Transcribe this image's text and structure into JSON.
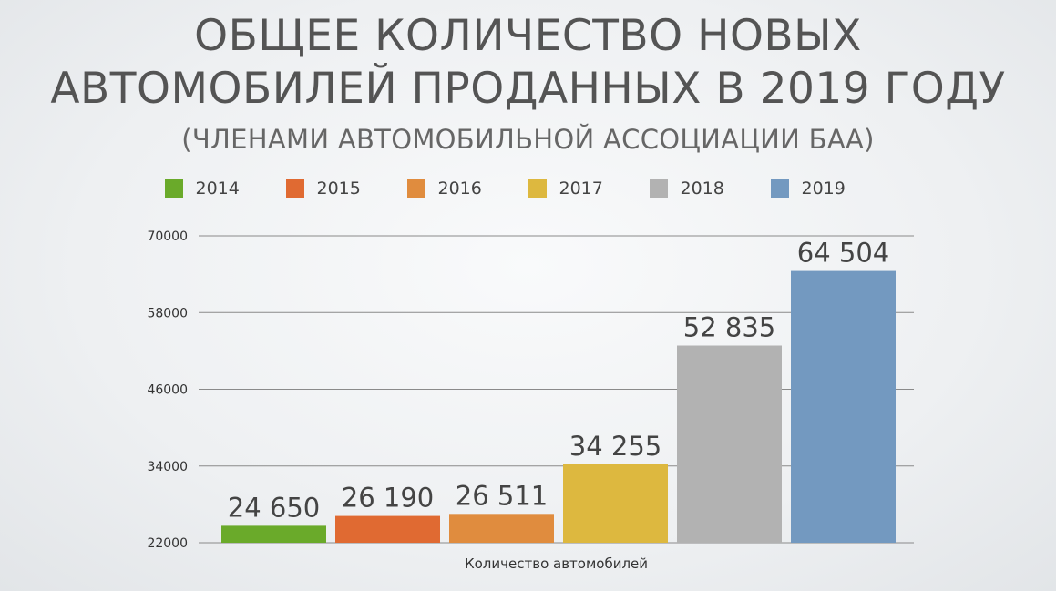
{
  "title_line1": "ОБЩЕЕ КОЛИЧЕСТВО НОВЫХ",
  "title_line2": "АВТОМОБИЛЕЙ ПРОДАННЫХ В 2019 ГОДУ",
  "subtitle": "(ЧЛЕНАМИ АВТОМОБИЛЬНОЙ АССОЦИАЦИИ БАА)",
  "chart_data": {
    "type": "bar",
    "title": "ОБЩЕЕ КОЛИЧЕСТВО НОВЫХ АВТОМОБИЛЕЙ ПРОДАННЫХ В 2019 ГОДУ",
    "subtitle": "(ЧЛЕНАМИ АВТОМОБИЛЬНОЙ АССОЦИАЦИИ БАА)",
    "xlabel": "Количество автомобилей",
    "ylabel": "",
    "ylim": [
      22000,
      70000
    ],
    "yticks": [
      22000,
      34000,
      46000,
      58000,
      70000
    ],
    "ytick_labels": [
      "22000",
      "34000",
      "46000",
      "58000",
      "70000"
    ],
    "grid": true,
    "legend_position": "top",
    "series": [
      {
        "name": "2014",
        "value": 24650,
        "label": "24 650",
        "color": "#6aaa2a"
      },
      {
        "name": "2015",
        "value": 26190,
        "label": "26 190",
        "color": "#e06a32"
      },
      {
        "name": "2016",
        "value": 26511,
        "label": "26 511",
        "color": "#e08c3e"
      },
      {
        "name": "2017",
        "value": 34255,
        "label": "34 255",
        "color": "#ddb83f"
      },
      {
        "name": "2018",
        "value": 52835,
        "label": "52 835",
        "color": "#b2b2b2"
      },
      {
        "name": "2019",
        "value": 64504,
        "label": "64 504",
        "color": "#7399c0"
      }
    ]
  }
}
